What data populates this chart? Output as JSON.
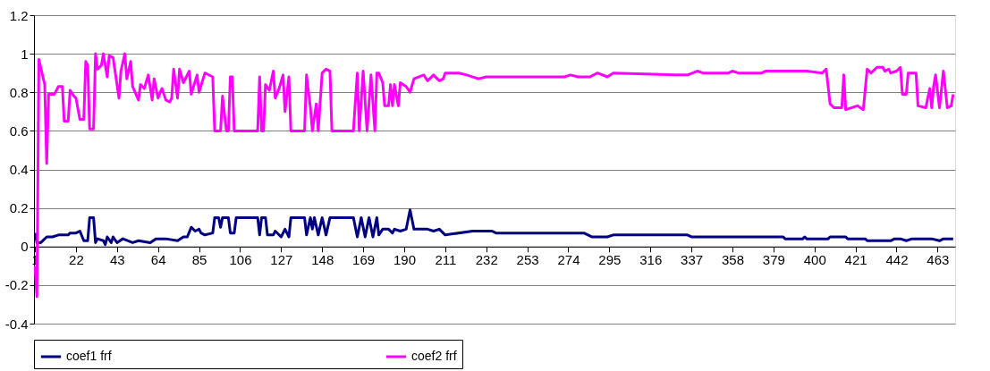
{
  "chart_data": {
    "type": "line",
    "xlim": [
      0.5,
      472
    ],
    "xticks": [
      1,
      22,
      43,
      64,
      85,
      106,
      127,
      148,
      169,
      190,
      211,
      232,
      253,
      274,
      295,
      316,
      337,
      358,
      379,
      400,
      421,
      442,
      463
    ],
    "ylim": [
      -0.4,
      1.2
    ],
    "yticks": [
      -0.4,
      -0.2,
      0,
      0.2,
      0.4,
      0.6,
      0.8,
      1,
      1.2
    ],
    "grid": "y",
    "legend": "bottom",
    "series": [
      {
        "name": "coef1 frf",
        "color": "#000080",
        "x": [
          1,
          2,
          4,
          7,
          10,
          13,
          18,
          19,
          22,
          24,
          26,
          28,
          29,
          31,
          32,
          33,
          36,
          37,
          38,
          40,
          41,
          43,
          46,
          51,
          54,
          60,
          63,
          68,
          74,
          77,
          79,
          81,
          83,
          85,
          86,
          88,
          92,
          93,
          95,
          96,
          97,
          100,
          101,
          103,
          104,
          115,
          116,
          117,
          119,
          120,
          123,
          124,
          127,
          129,
          131,
          132,
          139,
          140,
          142,
          143,
          144,
          146,
          148,
          150,
          152,
          164,
          166,
          168,
          170,
          172,
          174,
          176,
          177,
          179,
          182,
          184,
          185,
          188,
          191,
          193,
          195,
          202,
          205,
          208,
          211,
          225,
          235,
          237,
          282,
          286,
          294,
          297,
          335,
          337,
          384,
          385,
          394,
          395,
          396,
          407,
          408,
          416,
          417,
          426,
          427,
          431,
          439,
          441,
          444,
          447,
          450,
          460,
          464,
          466,
          471
        ],
        "values": [
          0.07,
          0.02,
          0.02,
          0.05,
          0.05,
          0.06,
          0.06,
          0.07,
          0.07,
          0.08,
          0.03,
          0.03,
          0.15,
          0.15,
          0.02,
          0.04,
          0.03,
          0.01,
          0.05,
          0.02,
          0.05,
          0.02,
          0.04,
          0.02,
          0.03,
          0.02,
          0.04,
          0.04,
          0.03,
          0.05,
          0.05,
          0.1,
          0.08,
          0.09,
          0.07,
          0.06,
          0.07,
          0.15,
          0.15,
          0.1,
          0.15,
          0.15,
          0.07,
          0.07,
          0.15,
          0.15,
          0.06,
          0.15,
          0.15,
          0.06,
          0.06,
          0.08,
          0.05,
          0.09,
          0.05,
          0.15,
          0.15,
          0.06,
          0.15,
          0.09,
          0.15,
          0.06,
          0.15,
          0.06,
          0.15,
          0.15,
          0.05,
          0.15,
          0.05,
          0.15,
          0.05,
          0.15,
          0.06,
          0.09,
          0.09,
          0.07,
          0.09,
          0.08,
          0.09,
          0.19,
          0.09,
          0.09,
          0.08,
          0.09,
          0.06,
          0.08,
          0.08,
          0.07,
          0.07,
          0.05,
          0.05,
          0.06,
          0.06,
          0.05,
          0.05,
          0.04,
          0.04,
          0.05,
          0.04,
          0.04,
          0.05,
          0.05,
          0.04,
          0.04,
          0.03,
          0.03,
          0.03,
          0.04,
          0.04,
          0.03,
          0.04,
          0.04,
          0.03,
          0.04,
          0.04
        ]
      },
      {
        "name": "coef2 frf",
        "color": "#ff00ff",
        "x": [
          1,
          2,
          3,
          6,
          7,
          8,
          11,
          13,
          15,
          16,
          18,
          19,
          21,
          22,
          24,
          26,
          27,
          28,
          29,
          31,
          32,
          33,
          35,
          36,
          38,
          39,
          41,
          44,
          45,
          47,
          48,
          50,
          51,
          54,
          55,
          57,
          59,
          61,
          62,
          64,
          66,
          68,
          70,
          71,
          72,
          74,
          75,
          77,
          80,
          81,
          84,
          85,
          88,
          92,
          93,
          96,
          97,
          99,
          100,
          101,
          102,
          103,
          115,
          116,
          117,
          118,
          119,
          121,
          123,
          124,
          126,
          128,
          129,
          131,
          132,
          139,
          140,
          142,
          143,
          145,
          146,
          148,
          150,
          152,
          153,
          164,
          166,
          167,
          169,
          171,
          173,
          175,
          176,
          177,
          179,
          180,
          182,
          183,
          184,
          185,
          187,
          188,
          191,
          193,
          195,
          200,
          202,
          205,
          208,
          210,
          211,
          218,
          222,
          228,
          232,
          236,
          272,
          275,
          279,
          285,
          289,
          294,
          297,
          329,
          335,
          340,
          343,
          356,
          358,
          361,
          373,
          375,
          396,
          404,
          406,
          408,
          410,
          414,
          415,
          416,
          422,
          425,
          427,
          429,
          432,
          435,
          436,
          438,
          439,
          442,
          444,
          445,
          447,
          448,
          452,
          453,
          457,
          459,
          460,
          461,
          462,
          464,
          466,
          468,
          470,
          471
        ],
        "values": [
          -0.1,
          -0.26,
          0.97,
          0.84,
          0.43,
          0.79,
          0.79,
          0.83,
          0.83,
          0.65,
          0.65,
          0.81,
          0.78,
          0.77,
          0.66,
          0.66,
          0.96,
          0.94,
          0.61,
          0.61,
          1.0,
          0.92,
          0.94,
          1.0,
          0.88,
          0.99,
          0.98,
          0.77,
          0.91,
          1.0,
          0.87,
          0.96,
          0.83,
          0.76,
          0.84,
          0.82,
          0.89,
          0.76,
          0.87,
          0.77,
          0.82,
          0.76,
          0.75,
          0.77,
          0.92,
          0.77,
          0.92,
          0.85,
          0.91,
          0.79,
          0.89,
          0.8,
          0.9,
          0.88,
          0.6,
          0.6,
          0.78,
          0.6,
          0.6,
          0.88,
          0.88,
          0.6,
          0.6,
          0.88,
          0.6,
          0.6,
          0.84,
          0.81,
          0.91,
          0.77,
          0.82,
          0.89,
          0.7,
          0.88,
          0.6,
          0.6,
          0.89,
          0.72,
          0.6,
          0.74,
          0.6,
          0.9,
          0.92,
          0.91,
          0.6,
          0.6,
          0.9,
          0.6,
          0.91,
          0.6,
          0.89,
          0.6,
          0.9,
          0.9,
          0.85,
          0.73,
          0.73,
          0.84,
          0.73,
          0.84,
          0.73,
          0.85,
          0.83,
          0.8,
          0.87,
          0.89,
          0.86,
          0.89,
          0.86,
          0.87,
          0.9,
          0.9,
          0.89,
          0.87,
          0.88,
          0.88,
          0.88,
          0.89,
          0.88,
          0.88,
          0.9,
          0.88,
          0.9,
          0.89,
          0.89,
          0.91,
          0.9,
          0.9,
          0.91,
          0.9,
          0.9,
          0.91,
          0.91,
          0.9,
          0.92,
          0.74,
          0.72,
          0.72,
          0.89,
          0.71,
          0.73,
          0.71,
          0.92,
          0.9,
          0.93,
          0.93,
          0.91,
          0.92,
          0.9,
          0.91,
          0.93,
          0.79,
          0.79,
          0.9,
          0.9,
          0.73,
          0.72,
          0.82,
          0.72,
          0.83,
          0.89,
          0.72,
          0.91,
          0.72,
          0.73,
          0.79
        ]
      }
    ]
  }
}
